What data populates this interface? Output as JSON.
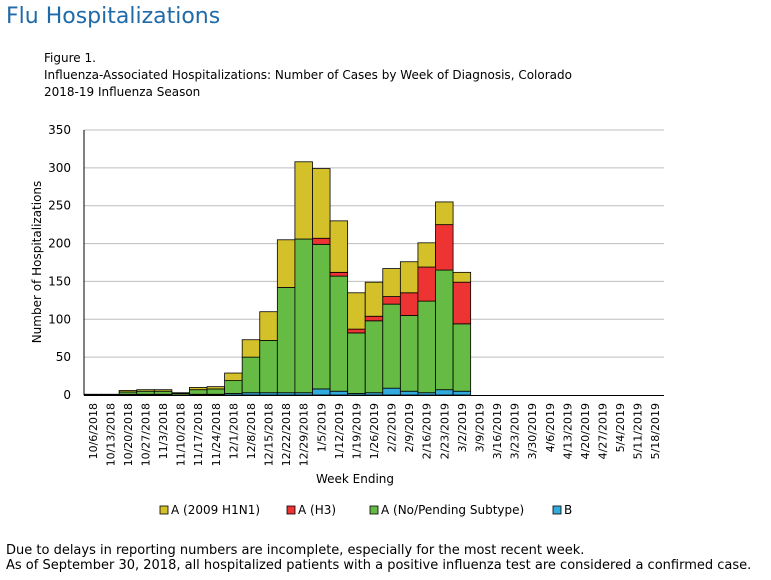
{
  "page": {
    "title": "Flu Hospitalizations",
    "figure_label": "Figure 1.",
    "figure_title_line1": "Influenza-Associated Hospitalizations: Number of  Cases by Week of Diagnosis, Colorado",
    "figure_title_line2": "2018-19  Influenza Season",
    "footnote_line1": "Due to delays in reporting numbers are incomplete, especially for the most recent week.",
    "footnote_line2": "As of September 30, 2018, all hospitalized patients with a positive influenza test are considered a confirmed case."
  },
  "chart_data": {
    "type": "bar",
    "stacked": true,
    "xlabel": "Week Ending",
    "ylabel": "Number of Hospitalizations",
    "ylim": [
      0,
      350
    ],
    "yticks": [
      0,
      50,
      100,
      150,
      200,
      250,
      300,
      350
    ],
    "grid": true,
    "legend_position": "bottom",
    "categories": [
      "10/6/2018",
      "10/13/2018",
      "10/20/2018",
      "10/27/2018",
      "11/3/2018",
      "11/10/2018",
      "11/17/2018",
      "11/24/2018",
      "12/1/2018",
      "12/8/2018",
      "12/15/2018",
      "12/22/2018",
      "12/29/2018",
      "1/5/2019",
      "1/12/2019",
      "1/19/2019",
      "1/26/2019",
      "2/2/2019",
      "2/9/2019",
      "2/16/2019",
      "2/23/2019",
      "3/2/2019",
      "3/9/2019",
      "3/16/2019",
      "3/23/2019",
      "3/30/2019",
      "4/6/2019",
      "4/13/2019",
      "4/20/2019",
      "4/27/2019",
      "5/4/2019",
      "5/11/2019",
      "5/18/2019"
    ],
    "series": [
      {
        "name": "B",
        "color": "#33aadd",
        "values": [
          0,
          0,
          1,
          1,
          1,
          0,
          1,
          1,
          2,
          3,
          3,
          3,
          3,
          8,
          5,
          2,
          3,
          9,
          5,
          3,
          7,
          5,
          0,
          0,
          0,
          0,
          0,
          0,
          0,
          0,
          0,
          0,
          0
        ]
      },
      {
        "name": "A (No/Pending Subtype)",
        "color": "#66bb44",
        "values": [
          0,
          0,
          3,
          4,
          4,
          2,
          6,
          7,
          17,
          47,
          69,
          139,
          203,
          191,
          152,
          80,
          95,
          111,
          100,
          121,
          158,
          89,
          0,
          0,
          0,
          0,
          0,
          0,
          0,
          0,
          0,
          0,
          0
        ]
      },
      {
        "name": "A (H3)",
        "color": "#ee3333",
        "values": [
          0,
          0,
          0,
          0,
          0,
          0,
          0,
          0,
          0,
          0,
          0,
          0,
          0,
          8,
          5,
          5,
          6,
          10,
          30,
          45,
          60,
          55,
          0,
          0,
          0,
          0,
          0,
          0,
          0,
          0,
          0,
          0,
          0
        ]
      },
      {
        "name": "A (2009 H1N1)",
        "color": "#d4c12a",
        "values": [
          1,
          1,
          2,
          2,
          2,
          1,
          3,
          3,
          10,
          23,
          38,
          63,
          102,
          92,
          68,
          48,
          45,
          37,
          41,
          32,
          30,
          13,
          0,
          0,
          0,
          0,
          0,
          0,
          0,
          0,
          0,
          0,
          0
        ]
      }
    ],
    "legend_order": [
      "A (2009 H1N1)",
      "A (H3)",
      "A (No/Pending Subtype)",
      "B"
    ]
  }
}
